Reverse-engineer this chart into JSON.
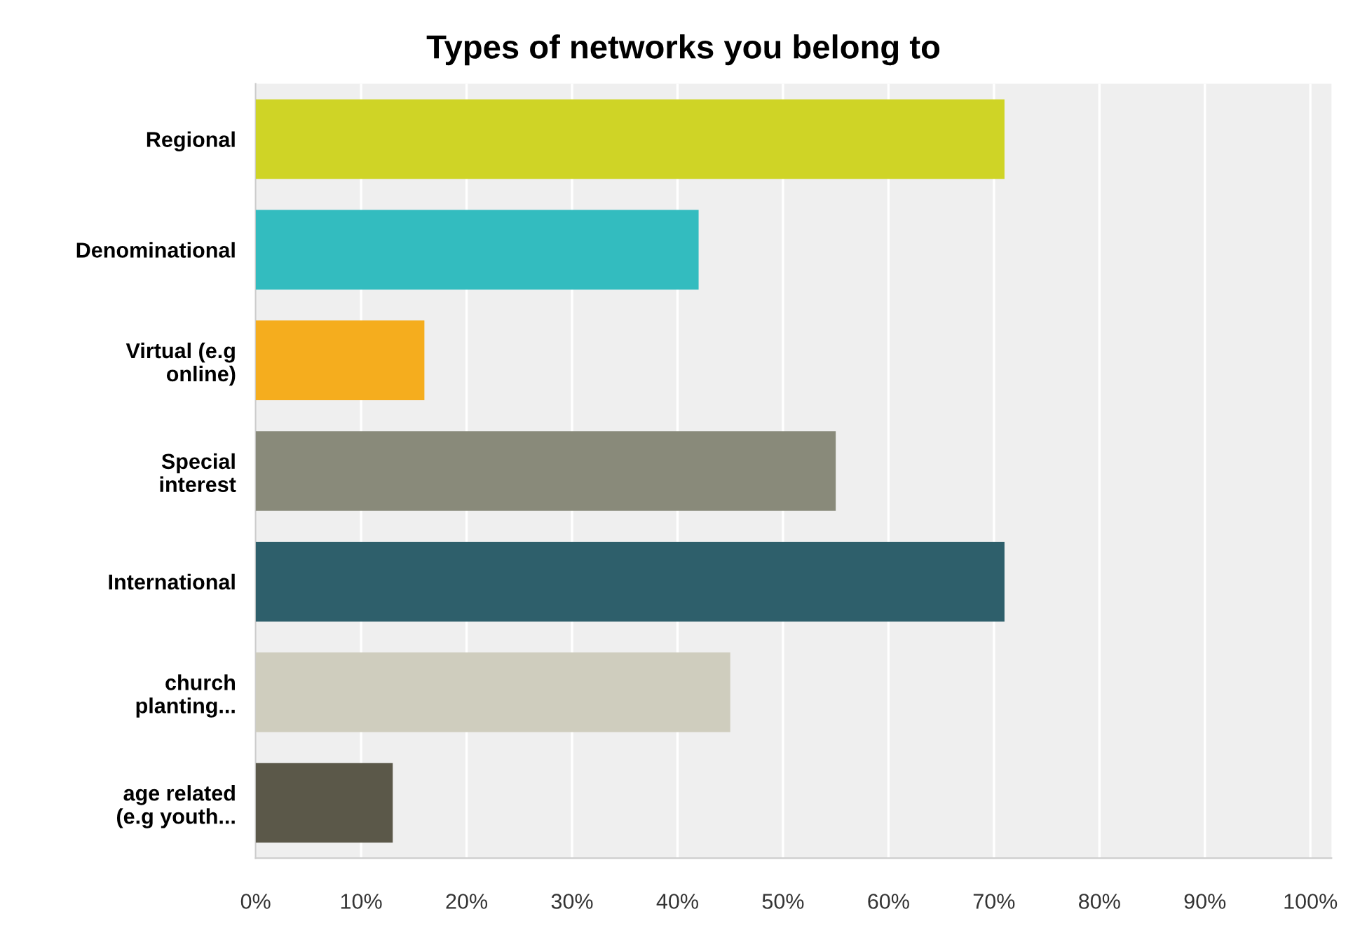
{
  "chart_data": {
    "type": "bar",
    "orientation": "horizontal",
    "title": "Types of networks you belong to",
    "categories": [
      "Regional",
      "Denominational",
      "Virtual (e.g\nonline)",
      "Special\ninterest",
      "International",
      "church\nplanting...",
      "age related\n(e.g youth..."
    ],
    "values": [
      71,
      42,
      16,
      55,
      71,
      45,
      13
    ],
    "colors": [
      "#cfd426",
      "#33bcbf",
      "#f5ad1e",
      "#898a7a",
      "#2e5f6b",
      "#cfcdbe",
      "#5b5849"
    ],
    "xlim": [
      0,
      102
    ],
    "xticks": [
      {
        "value": 0,
        "label": "0%"
      },
      {
        "value": 10,
        "label": "10%"
      },
      {
        "value": 20,
        "label": "20%"
      },
      {
        "value": 30,
        "label": "30%"
      },
      {
        "value": 40,
        "label": "40%"
      },
      {
        "value": 50,
        "label": "50%"
      },
      {
        "value": 60,
        "label": "60%"
      },
      {
        "value": 70,
        "label": "70%"
      },
      {
        "value": 80,
        "label": "80%"
      },
      {
        "value": 90,
        "label": "90%"
      },
      {
        "value": 100,
        "label": "100%"
      }
    ],
    "grid": "x"
  }
}
